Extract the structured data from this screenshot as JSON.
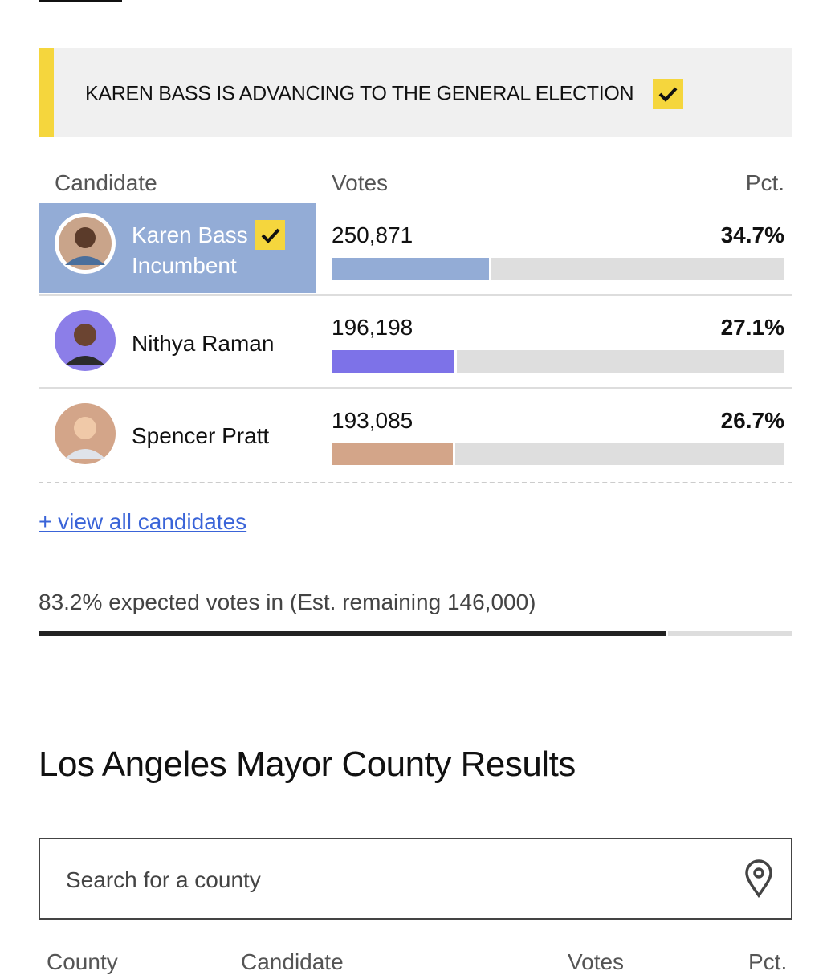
{
  "banner": {
    "text": "KAREN BASS IS ADVANCING TO THE GENERAL ELECTION"
  },
  "results": {
    "headers": [
      "Candidate",
      "Votes",
      "Pct."
    ],
    "candidates": [
      {
        "name": "Karen Bass",
        "status": "Incumbent",
        "votes": "250,871",
        "pct": {
          "value": 34.7,
          "label": "34.7%"
        },
        "color": "#93acd6"
      },
      {
        "name": "Nithya Raman",
        "votes": "196,198",
        "pct": {
          "value": 27.1,
          "label": "27.1%"
        },
        "color": "#7d72e8"
      },
      {
        "name": "Spencer Pratt",
        "votes": "193,085",
        "pct": {
          "value": 26.7,
          "label": "26.7%"
        },
        "color": "#d3a589"
      }
    ],
    "view_all": "+ view all candidates",
    "expected": {
      "value": 83.2,
      "label": "83.2%"
    },
    "expected_text": "expected votes in (Est. remaining 146,000)"
  },
  "county": {
    "title": "Los Angeles Mayor County Results",
    "search_placeholder": "Search for a county",
    "headers": [
      "County",
      "Candidate",
      "Votes",
      "Pct."
    ]
  }
}
